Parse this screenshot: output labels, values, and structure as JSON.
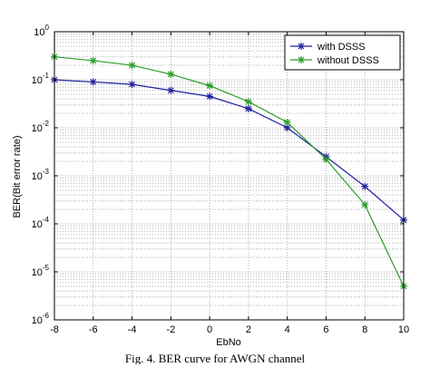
{
  "chart_data": {
    "type": "line",
    "xlabel": "EbNo",
    "ylabel": "BER(Bit error rate)",
    "x": [
      -8,
      -6,
      -4,
      -2,
      0,
      2,
      4,
      6,
      8,
      10
    ],
    "xlim": [
      -8,
      10
    ],
    "ylim": [
      1e-06,
      1
    ],
    "yscale": "log",
    "x_ticks": [
      "-8",
      "-6",
      "-4",
      "-2",
      "0",
      "2",
      "4",
      "6",
      "8",
      "10"
    ],
    "y_ticks": [
      {
        "base": "10",
        "exp": "0"
      },
      {
        "base": "10",
        "exp": "-1"
      },
      {
        "base": "10",
        "exp": "-2"
      },
      {
        "base": "10",
        "exp": "-3"
      },
      {
        "base": "10",
        "exp": "-4"
      },
      {
        "base": "10",
        "exp": "-5"
      },
      {
        "base": "10",
        "exp": "-6"
      }
    ],
    "grid": true,
    "legend_position": "top-right",
    "series": [
      {
        "name": "with DSSS",
        "color": "#1f1fa0",
        "marker": "star",
        "values": [
          0.1,
          0.09,
          0.08,
          0.06,
          0.045,
          0.025,
          0.01,
          0.0025,
          0.0006,
          0.00012
        ]
      },
      {
        "name": "without DSSS",
        "color": "#2a9e2a",
        "marker": "star",
        "values": [
          0.3,
          0.25,
          0.2,
          0.13,
          0.075,
          0.035,
          0.013,
          0.0022,
          0.00025,
          5e-06
        ]
      }
    ]
  },
  "caption": "Fig. 4. BER curve for AWGN channel"
}
